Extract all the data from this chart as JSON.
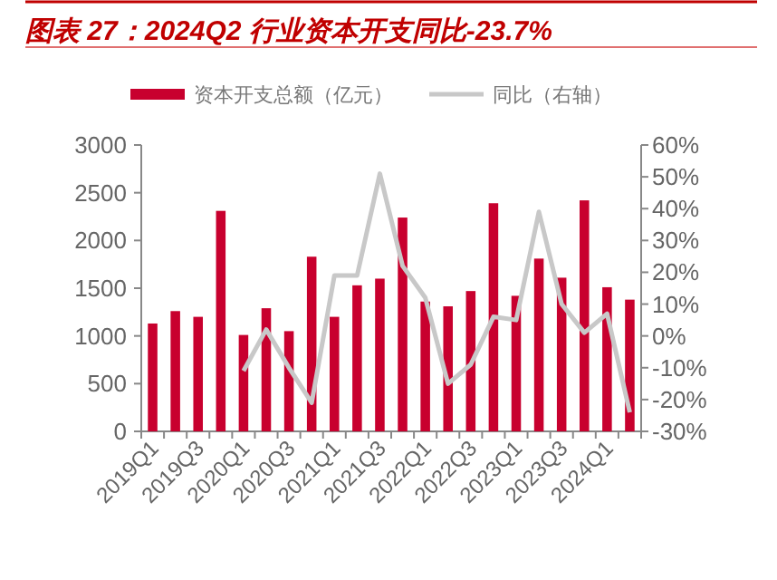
{
  "chart_data": {
    "type": "bar",
    "title": "图表 27：2024Q2 行业资本开支同比-23.7%",
    "categories": [
      "2019Q1",
      null,
      "2019Q3",
      null,
      "2020Q1",
      null,
      "2020Q3",
      null,
      "2021Q1",
      null,
      "2021Q3",
      null,
      "2022Q1",
      null,
      "2022Q3",
      null,
      "2023Q1",
      null,
      "2023Q3",
      null,
      "2024Q1",
      null
    ],
    "series": [
      {
        "name": "资本开支总额（亿元）",
        "color": "#c8002e",
        "values": [
          1130,
          1260,
          1200,
          2310,
          1010,
          1290,
          1050,
          1830,
          1200,
          1530,
          1600,
          2240,
          1360,
          1310,
          1470,
          2390,
          1420,
          1810,
          1610,
          2420,
          1510,
          1380
        ]
      },
      {
        "name": "同比（右轴）",
        "type": "line",
        "axis": "y2",
        "color": "#c8c8c8",
        "values": [
          null,
          null,
          null,
          null,
          -11,
          2,
          -10,
          -21,
          19,
          19,
          51,
          22,
          12,
          -15,
          -9,
          6,
          5,
          39,
          10,
          1,
          7,
          -24
        ]
      }
    ],
    "ylim": [
      0,
      3000
    ],
    "yticks": [
      0,
      500,
      1000,
      1500,
      2000,
      2500,
      3000
    ],
    "y2lim": [
      -30,
      60
    ],
    "y2ticks": [
      {
        "value": -30,
        "label": "-30%"
      },
      {
        "value": -20,
        "label": "-20%"
      },
      {
        "value": -10,
        "label": "-10%"
      },
      {
        "value": 0,
        "label": "0%"
      },
      {
        "value": 10,
        "label": "10%"
      },
      {
        "value": 20,
        "label": "20%"
      },
      {
        "value": 30,
        "label": "30%"
      },
      {
        "value": 40,
        "label": "40%"
      },
      {
        "value": 50,
        "label": "50%"
      },
      {
        "value": 60,
        "label": "60%"
      }
    ],
    "legend": "top",
    "grid": false
  }
}
